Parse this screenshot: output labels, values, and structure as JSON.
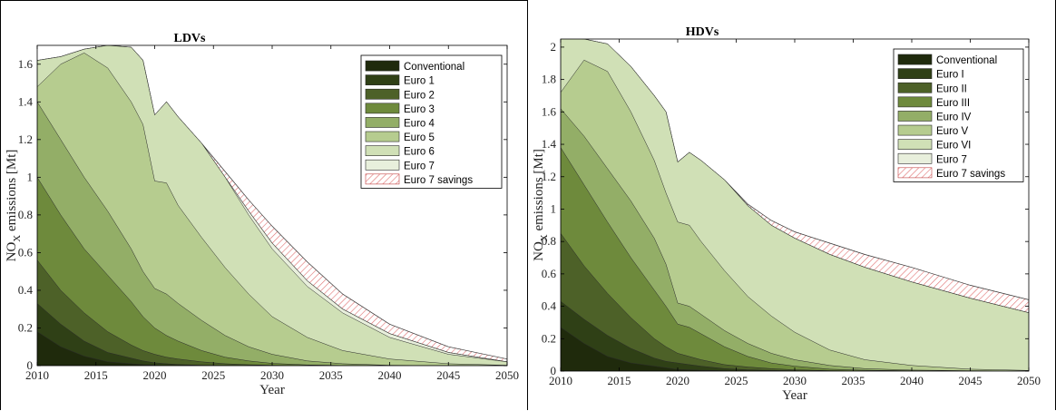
{
  "colors": {
    "stack": [
      "#1f2a0c",
      "#2f4016",
      "#4d6128",
      "#6e8a3c",
      "#93ae67",
      "#b6cc8f",
      "#d0e0b6",
      "#e8efdc"
    ],
    "savings_hatch": "#e07070"
  },
  "chart_data": [
    {
      "type": "area",
      "title": "LDVs",
      "xlabel": "Year",
      "ylabel": "NO",
      "ylabel_sub": "X",
      "ylabel_rest": " emissions [Mt]",
      "xlim": [
        2010,
        2050
      ],
      "ylim": [
        0,
        1.7
      ],
      "xticks": [
        "2010",
        "2015",
        "2020",
        "2025",
        "2030",
        "2035",
        "2040",
        "2045",
        "2050"
      ],
      "yticks": [
        "0",
        "0.2",
        "0.4",
        "0.6",
        "0.8",
        "1",
        "1.2",
        "1.4",
        "1.6"
      ],
      "legend_position": "top-right",
      "legend": [
        "Conventional",
        "Euro 1",
        "Euro 2",
        "Euro 3",
        "Euro 4",
        "Euro 5",
        "Euro 6",
        "Euro 7",
        "Euro 7 savings"
      ],
      "x": [
        2010,
        2012,
        2014,
        2016,
        2018,
        2019,
        2020,
        2021,
        2022,
        2024,
        2026,
        2028,
        2030,
        2033,
        2036,
        2040,
        2045,
        2050
      ],
      "cumulative": [
        [
          0.18,
          0.1,
          0.05,
          0.02,
          0.01,
          0.005,
          0.002,
          0.001,
          0,
          0,
          0,
          0,
          0,
          0,
          0,
          0,
          0,
          0
        ],
        [
          0.33,
          0.22,
          0.13,
          0.07,
          0.04,
          0.025,
          0.015,
          0.01,
          0.006,
          0.002,
          0,
          0,
          0,
          0,
          0,
          0,
          0,
          0
        ],
        [
          0.56,
          0.4,
          0.28,
          0.18,
          0.11,
          0.08,
          0.06,
          0.045,
          0.035,
          0.02,
          0.01,
          0.005,
          0.002,
          0,
          0,
          0,
          0,
          0
        ],
        [
          1.0,
          0.8,
          0.62,
          0.48,
          0.34,
          0.26,
          0.2,
          0.16,
          0.13,
          0.08,
          0.045,
          0.025,
          0.012,
          0.004,
          0.001,
          0,
          0,
          0
        ],
        [
          1.4,
          1.2,
          1.0,
          0.82,
          0.62,
          0.5,
          0.41,
          0.38,
          0.33,
          0.24,
          0.16,
          0.1,
          0.06,
          0.025,
          0.01,
          0.002,
          0,
          0
        ],
        [
          1.48,
          1.6,
          1.66,
          1.58,
          1.4,
          1.28,
          0.98,
          0.97,
          0.85,
          0.68,
          0.52,
          0.38,
          0.26,
          0.15,
          0.08,
          0.035,
          0.01,
          0.002
        ],
        [
          1.62,
          1.64,
          1.68,
          1.7,
          1.69,
          1.62,
          1.33,
          1.4,
          1.32,
          1.18,
          1.0,
          0.8,
          0.62,
          0.42,
          0.28,
          0.15,
          0.06,
          0.02
        ],
        [
          1.62,
          1.64,
          1.68,
          1.7,
          1.69,
          1.62,
          1.33,
          1.4,
          1.32,
          1.18,
          1.0,
          0.82,
          0.65,
          0.45,
          0.3,
          0.17,
          0.07,
          0.02
        ]
      ],
      "savings_top": [
        1.62,
        1.64,
        1.68,
        1.7,
        1.69,
        1.62,
        1.33,
        1.4,
        1.32,
        1.18,
        1.03,
        0.88,
        0.74,
        0.55,
        0.38,
        0.22,
        0.1,
        0.035
      ]
    },
    {
      "type": "area",
      "title": "HDVs",
      "xlabel": "Year",
      "ylabel": "NO",
      "ylabel_sub": "X",
      "ylabel_rest": " emissions [Mt]",
      "xlim": [
        2010,
        2050
      ],
      "ylim": [
        0,
        2.05
      ],
      "xticks": [
        "2010",
        "2015",
        "2020",
        "2025",
        "2030",
        "2035",
        "2040",
        "2045",
        "2050"
      ],
      "yticks": [
        "0",
        "0.2",
        "0.4",
        "0.6",
        "0.8",
        "1",
        "1.2",
        "1.4",
        "1.6",
        "1.8",
        "2"
      ],
      "legend_position": "top-right",
      "legend": [
        "Conventional",
        "Euro I",
        "Euro II",
        "Euro III",
        "Euro IV",
        "Euro V",
        "Euro VI",
        "Euro 7",
        "Euro 7 savings"
      ],
      "x": [
        2010,
        2012,
        2014,
        2016,
        2018,
        2019,
        2020,
        2021,
        2022,
        2024,
        2026,
        2028,
        2030,
        2033,
        2036,
        2040,
        2045,
        2050
      ],
      "cumulative": [
        [
          0.27,
          0.17,
          0.09,
          0.05,
          0.03,
          0.02,
          0.01,
          0.008,
          0.005,
          0.002,
          0,
          0,
          0,
          0,
          0,
          0,
          0,
          0
        ],
        [
          0.43,
          0.32,
          0.22,
          0.14,
          0.08,
          0.06,
          0.05,
          0.04,
          0.03,
          0.015,
          0.008,
          0.004,
          0.002,
          0,
          0,
          0,
          0,
          0
        ],
        [
          0.85,
          0.65,
          0.48,
          0.33,
          0.2,
          0.15,
          0.11,
          0.09,
          0.07,
          0.04,
          0.025,
          0.015,
          0.008,
          0.003,
          0,
          0,
          0,
          0
        ],
        [
          1.38,
          1.15,
          0.92,
          0.7,
          0.5,
          0.4,
          0.29,
          0.27,
          0.23,
          0.15,
          0.09,
          0.05,
          0.03,
          0.012,
          0.005,
          0.002,
          0,
          0
        ],
        [
          1.62,
          1.45,
          1.25,
          1.05,
          0.82,
          0.66,
          0.42,
          0.4,
          0.35,
          0.25,
          0.17,
          0.11,
          0.07,
          0.035,
          0.015,
          0.006,
          0.002,
          0
        ],
        [
          1.72,
          1.92,
          1.85,
          1.6,
          1.3,
          1.1,
          0.92,
          0.9,
          0.8,
          0.62,
          0.46,
          0.34,
          0.24,
          0.13,
          0.07,
          0.035,
          0.012,
          0.004
        ],
        [
          2.06,
          2.05,
          2.02,
          1.88,
          1.7,
          1.6,
          1.29,
          1.35,
          1.3,
          1.18,
          1.02,
          0.9,
          0.82,
          0.72,
          0.64,
          0.55,
          0.45,
          0.36
        ],
        [
          2.06,
          2.05,
          2.02,
          1.88,
          1.7,
          1.6,
          1.29,
          1.35,
          1.3,
          1.18,
          1.02,
          0.9,
          0.82,
          0.72,
          0.64,
          0.55,
          0.45,
          0.36
        ]
      ],
      "savings_top": [
        2.06,
        2.05,
        2.02,
        1.88,
        1.7,
        1.6,
        1.29,
        1.35,
        1.3,
        1.18,
        1.03,
        0.93,
        0.86,
        0.79,
        0.72,
        0.64,
        0.53,
        0.44
      ]
    }
  ]
}
